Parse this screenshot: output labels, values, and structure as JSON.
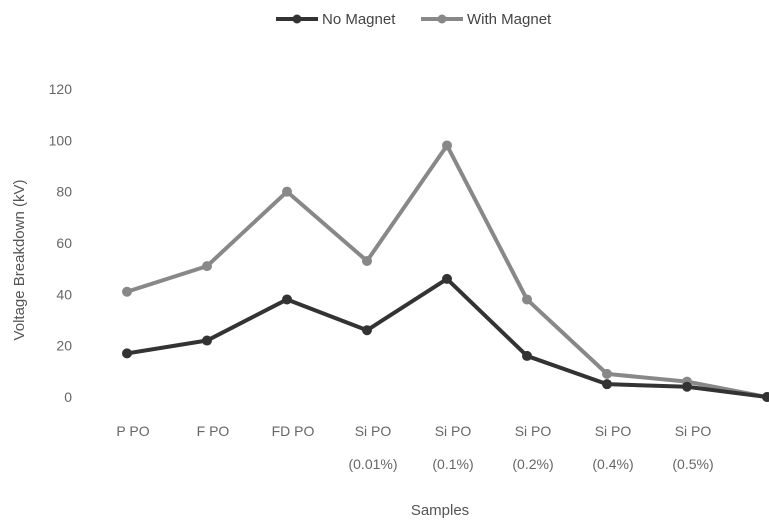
{
  "chart_data": {
    "type": "line",
    "categories": [
      [
        "P PO",
        ""
      ],
      [
        "F PO",
        ""
      ],
      [
        "FD PO",
        ""
      ],
      [
        "Si PO",
        "(0.01%)"
      ],
      [
        "Si PO",
        "(0.1%)"
      ],
      [
        "Si PO",
        "(0.2%)"
      ],
      [
        "Si PO",
        "(0.4%)"
      ],
      [
        "Si PO",
        "(0.5%)"
      ],
      [
        "",
        ""
      ]
    ],
    "series": [
      {
        "name": "No Magnet",
        "color": "#333333",
        "values": [
          17,
          22,
          38,
          26,
          46,
          16,
          5,
          4,
          0
        ]
      },
      {
        "name": "With Magnet",
        "color": "#888888",
        "values": [
          41,
          51,
          80,
          53,
          98,
          38,
          9,
          6,
          0
        ]
      }
    ],
    "xlabel": "Samples",
    "ylabel": "Voltage Breakdown (kV)",
    "ylim": [
      0,
      120
    ],
    "yticks": [
      0,
      20,
      40,
      60,
      80,
      100,
      120
    ],
    "grid": false,
    "legend_position": "top-center"
  }
}
